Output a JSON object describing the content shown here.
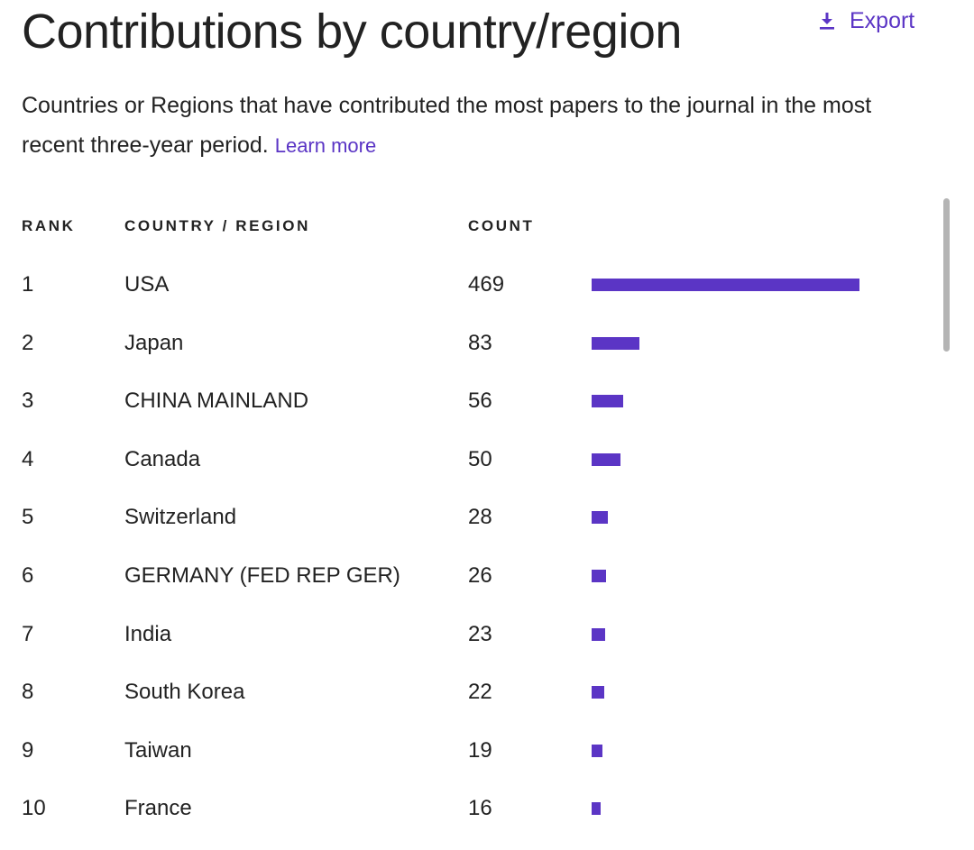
{
  "header": {
    "title": "Contributions by country/region",
    "export_label": "Export",
    "export_icon": "download-icon"
  },
  "description": {
    "text": "Countries or Regions that have contributed the most papers to the journal in the most recent three-year period.",
    "learn_more": "Learn more"
  },
  "table": {
    "columns": [
      "RANK",
      "COUNTRY / REGION",
      "COUNT"
    ],
    "rows": [
      {
        "rank": "1",
        "country": "USA",
        "count": "469"
      },
      {
        "rank": "2",
        "country": "Japan",
        "count": "83"
      },
      {
        "rank": "3",
        "country": "CHINA MAINLAND",
        "count": "56"
      },
      {
        "rank": "4",
        "country": "Canada",
        "count": "50"
      },
      {
        "rank": "5",
        "country": "Switzerland",
        "count": "28"
      },
      {
        "rank": "6",
        "country": "GERMANY (FED REP GER)",
        "count": "26"
      },
      {
        "rank": "7",
        "country": "India",
        "count": "23"
      },
      {
        "rank": "8",
        "country": "South Korea",
        "count": "22"
      },
      {
        "rank": "9",
        "country": "Taiwan",
        "count": "19"
      },
      {
        "rank": "10",
        "country": "France",
        "count": "16"
      }
    ]
  },
  "colors": {
    "accent": "#5b35c5",
    "text": "#222222",
    "scrollbar": "#b4b4b4"
  }
}
